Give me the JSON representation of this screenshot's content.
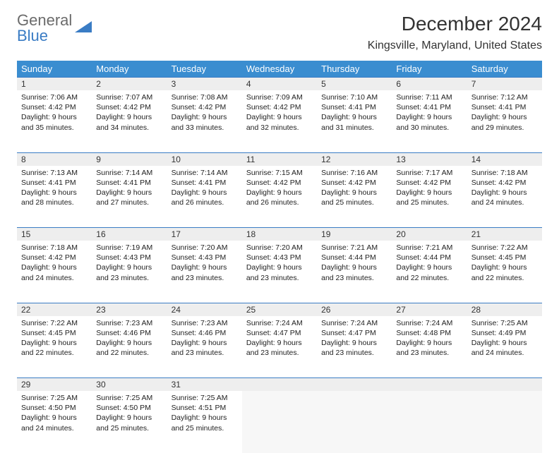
{
  "logo": {
    "line1": "General",
    "line2": "Blue"
  },
  "title": "December 2024",
  "location": "Kingsville, Maryland, United States",
  "header_bg": "#3a8dd0",
  "accent": "#3a7cc4",
  "daynum_bg": "#eeeeee",
  "weekdays": [
    "Sunday",
    "Monday",
    "Tuesday",
    "Wednesday",
    "Thursday",
    "Friday",
    "Saturday"
  ],
  "weeks": [
    {
      "nums": [
        "1",
        "2",
        "3",
        "4",
        "5",
        "6",
        "7"
      ],
      "cells": [
        {
          "sunrise": "Sunrise: 7:06 AM",
          "sunset": "Sunset: 4:42 PM",
          "day1": "Daylight: 9 hours",
          "day2": "and 35 minutes."
        },
        {
          "sunrise": "Sunrise: 7:07 AM",
          "sunset": "Sunset: 4:42 PM",
          "day1": "Daylight: 9 hours",
          "day2": "and 34 minutes."
        },
        {
          "sunrise": "Sunrise: 7:08 AM",
          "sunset": "Sunset: 4:42 PM",
          "day1": "Daylight: 9 hours",
          "day2": "and 33 minutes."
        },
        {
          "sunrise": "Sunrise: 7:09 AM",
          "sunset": "Sunset: 4:42 PM",
          "day1": "Daylight: 9 hours",
          "day2": "and 32 minutes."
        },
        {
          "sunrise": "Sunrise: 7:10 AM",
          "sunset": "Sunset: 4:41 PM",
          "day1": "Daylight: 9 hours",
          "day2": "and 31 minutes."
        },
        {
          "sunrise": "Sunrise: 7:11 AM",
          "sunset": "Sunset: 4:41 PM",
          "day1": "Daylight: 9 hours",
          "day2": "and 30 minutes."
        },
        {
          "sunrise": "Sunrise: 7:12 AM",
          "sunset": "Sunset: 4:41 PM",
          "day1": "Daylight: 9 hours",
          "day2": "and 29 minutes."
        }
      ]
    },
    {
      "nums": [
        "8",
        "9",
        "10",
        "11",
        "12",
        "13",
        "14"
      ],
      "cells": [
        {
          "sunrise": "Sunrise: 7:13 AM",
          "sunset": "Sunset: 4:41 PM",
          "day1": "Daylight: 9 hours",
          "day2": "and 28 minutes."
        },
        {
          "sunrise": "Sunrise: 7:14 AM",
          "sunset": "Sunset: 4:41 PM",
          "day1": "Daylight: 9 hours",
          "day2": "and 27 minutes."
        },
        {
          "sunrise": "Sunrise: 7:14 AM",
          "sunset": "Sunset: 4:41 PM",
          "day1": "Daylight: 9 hours",
          "day2": "and 26 minutes."
        },
        {
          "sunrise": "Sunrise: 7:15 AM",
          "sunset": "Sunset: 4:42 PM",
          "day1": "Daylight: 9 hours",
          "day2": "and 26 minutes."
        },
        {
          "sunrise": "Sunrise: 7:16 AM",
          "sunset": "Sunset: 4:42 PM",
          "day1": "Daylight: 9 hours",
          "day2": "and 25 minutes."
        },
        {
          "sunrise": "Sunrise: 7:17 AM",
          "sunset": "Sunset: 4:42 PM",
          "day1": "Daylight: 9 hours",
          "day2": "and 25 minutes."
        },
        {
          "sunrise": "Sunrise: 7:18 AM",
          "sunset": "Sunset: 4:42 PM",
          "day1": "Daylight: 9 hours",
          "day2": "and 24 minutes."
        }
      ]
    },
    {
      "nums": [
        "15",
        "16",
        "17",
        "18",
        "19",
        "20",
        "21"
      ],
      "cells": [
        {
          "sunrise": "Sunrise: 7:18 AM",
          "sunset": "Sunset: 4:42 PM",
          "day1": "Daylight: 9 hours",
          "day2": "and 24 minutes."
        },
        {
          "sunrise": "Sunrise: 7:19 AM",
          "sunset": "Sunset: 4:43 PM",
          "day1": "Daylight: 9 hours",
          "day2": "and 23 minutes."
        },
        {
          "sunrise": "Sunrise: 7:20 AM",
          "sunset": "Sunset: 4:43 PM",
          "day1": "Daylight: 9 hours",
          "day2": "and 23 minutes."
        },
        {
          "sunrise": "Sunrise: 7:20 AM",
          "sunset": "Sunset: 4:43 PM",
          "day1": "Daylight: 9 hours",
          "day2": "and 23 minutes."
        },
        {
          "sunrise": "Sunrise: 7:21 AM",
          "sunset": "Sunset: 4:44 PM",
          "day1": "Daylight: 9 hours",
          "day2": "and 23 minutes."
        },
        {
          "sunrise": "Sunrise: 7:21 AM",
          "sunset": "Sunset: 4:44 PM",
          "day1": "Daylight: 9 hours",
          "day2": "and 22 minutes."
        },
        {
          "sunrise": "Sunrise: 7:22 AM",
          "sunset": "Sunset: 4:45 PM",
          "day1": "Daylight: 9 hours",
          "day2": "and 22 minutes."
        }
      ]
    },
    {
      "nums": [
        "22",
        "23",
        "24",
        "25",
        "26",
        "27",
        "28"
      ],
      "cells": [
        {
          "sunrise": "Sunrise: 7:22 AM",
          "sunset": "Sunset: 4:45 PM",
          "day1": "Daylight: 9 hours",
          "day2": "and 22 minutes."
        },
        {
          "sunrise": "Sunrise: 7:23 AM",
          "sunset": "Sunset: 4:46 PM",
          "day1": "Daylight: 9 hours",
          "day2": "and 22 minutes."
        },
        {
          "sunrise": "Sunrise: 7:23 AM",
          "sunset": "Sunset: 4:46 PM",
          "day1": "Daylight: 9 hours",
          "day2": "and 23 minutes."
        },
        {
          "sunrise": "Sunrise: 7:24 AM",
          "sunset": "Sunset: 4:47 PM",
          "day1": "Daylight: 9 hours",
          "day2": "and 23 minutes."
        },
        {
          "sunrise": "Sunrise: 7:24 AM",
          "sunset": "Sunset: 4:47 PM",
          "day1": "Daylight: 9 hours",
          "day2": "and 23 minutes."
        },
        {
          "sunrise": "Sunrise: 7:24 AM",
          "sunset": "Sunset: 4:48 PM",
          "day1": "Daylight: 9 hours",
          "day2": "and 23 minutes."
        },
        {
          "sunrise": "Sunrise: 7:25 AM",
          "sunset": "Sunset: 4:49 PM",
          "day1": "Daylight: 9 hours",
          "day2": "and 24 minutes."
        }
      ]
    },
    {
      "nums": [
        "29",
        "30",
        "31",
        "",
        "",
        "",
        ""
      ],
      "cells": [
        {
          "sunrise": "Sunrise: 7:25 AM",
          "sunset": "Sunset: 4:50 PM",
          "day1": "Daylight: 9 hours",
          "day2": "and 24 minutes."
        },
        {
          "sunrise": "Sunrise: 7:25 AM",
          "sunset": "Sunset: 4:50 PM",
          "day1": "Daylight: 9 hours",
          "day2": "and 25 minutes."
        },
        {
          "sunrise": "Sunrise: 7:25 AM",
          "sunset": "Sunset: 4:51 PM",
          "day1": "Daylight: 9 hours",
          "day2": "and 25 minutes."
        },
        null,
        null,
        null,
        null
      ]
    }
  ]
}
